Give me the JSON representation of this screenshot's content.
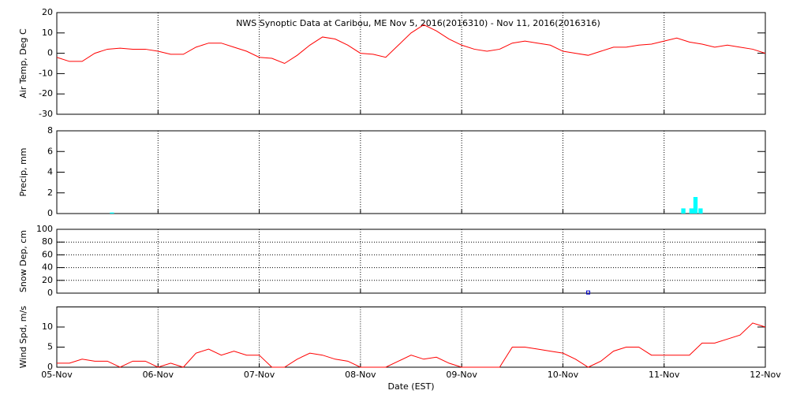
{
  "chart_data": [
    {
      "type": "line",
      "title": "NWS Synoptic Data at Caribou, ME   Nov  5, 2016(2016310) - Nov 11, 2016(2016316)",
      "ylabel": "Air Temp, Deg C",
      "color": "#ff0000",
      "grid": "x",
      "xlim": [
        0,
        7
      ],
      "xticks": [
        0,
        1,
        2,
        3,
        4,
        5,
        6,
        7
      ],
      "ylim": [
        -30,
        20
      ],
      "yticks": [
        -30,
        -20,
        -10,
        0,
        10,
        20
      ],
      "x": [
        0,
        0.125,
        0.25,
        0.375,
        0.5,
        0.625,
        0.75,
        0.875,
        1,
        1.125,
        1.25,
        1.375,
        1.5,
        1.625,
        1.75,
        1.875,
        2,
        2.125,
        2.25,
        2.375,
        2.5,
        2.625,
        2.75,
        2.875,
        3,
        3.125,
        3.25,
        3.375,
        3.5,
        3.625,
        3.75,
        3.875,
        4,
        4.125,
        4.25,
        4.375,
        4.5,
        4.625,
        4.75,
        4.875,
        5,
        5.125,
        5.25,
        5.375,
        5.5,
        5.625,
        5.75,
        5.875,
        6,
        6.125,
        6.25,
        6.375,
        6.5,
        6.625,
        6.75,
        6.875,
        7
      ],
      "values": [
        -2,
        -4,
        -4,
        0,
        2,
        2.5,
        2,
        2,
        1,
        -0.5,
        -0.5,
        3,
        5,
        5,
        3,
        1,
        -2,
        -2.5,
        -5,
        -1,
        4,
        8,
        7,
        4,
        0,
        -0.5,
        -2,
        4,
        10,
        14,
        11,
        7,
        4,
        2,
        1,
        2,
        5,
        6,
        5,
        4,
        1,
        0,
        -1,
        1,
        3,
        3,
        4,
        4.5,
        6,
        7.5,
        5.5,
        4.5,
        3,
        4,
        3,
        2,
        0
      ]
    },
    {
      "type": "bar",
      "ylabel": "Precip, mm",
      "color": "#00ffff",
      "grid": "x",
      "xlim": [
        0,
        7
      ],
      "xticks": [
        0,
        1,
        2,
        3,
        4,
        5,
        6,
        7
      ],
      "ylim": [
        0,
        8
      ],
      "yticks": [
        0,
        2,
        4,
        6,
        8
      ],
      "x": [
        0.545,
        6.19,
        6.27,
        6.31,
        6.36
      ],
      "values": [
        0.1,
        0.5,
        0.5,
        1.6,
        0.5
      ]
    },
    {
      "type": "scatter",
      "ylabel": "Snow Dep, cm",
      "color": "#0000cc",
      "grid": "xy",
      "xlim": [
        0,
        7
      ],
      "xticks": [
        0,
        1,
        2,
        3,
        4,
        5,
        6,
        7
      ],
      "ylim": [
        0,
        100
      ],
      "yticks": [
        0,
        20,
        40,
        60,
        80,
        100
      ],
      "x": [
        5.25
      ],
      "values": [
        1
      ]
    },
    {
      "type": "line",
      "ylabel": "Wind Spd, m/s",
      "xlabel": "Date (EST)",
      "color": "#ff0000",
      "grid": "x",
      "xlim": [
        0,
        7
      ],
      "xticks": [
        {
          "value": 0,
          "label": "05-Nov"
        },
        {
          "value": 1,
          "label": "06-Nov"
        },
        {
          "value": 2,
          "label": "07-Nov"
        },
        {
          "value": 3,
          "label": "08-Nov"
        },
        {
          "value": 4,
          "label": "09-Nov"
        },
        {
          "value": 5,
          "label": "10-Nov"
        },
        {
          "value": 6,
          "label": "11-Nov"
        },
        {
          "value": 7,
          "label": "12-Nov"
        }
      ],
      "ylim": [
        0,
        15
      ],
      "yticks": [
        0,
        5,
        10
      ],
      "x": [
        0,
        0.125,
        0.25,
        0.375,
        0.5,
        0.625,
        0.75,
        0.875,
        1,
        1.125,
        1.25,
        1.375,
        1.5,
        1.625,
        1.75,
        1.875,
        2,
        2.125,
        2.25,
        2.375,
        2.5,
        2.625,
        2.75,
        2.875,
        3,
        3.125,
        3.25,
        3.375,
        3.5,
        3.625,
        3.75,
        3.875,
        4,
        4.125,
        4.25,
        4.375,
        4.5,
        4.625,
        4.75,
        4.875,
        5,
        5.125,
        5.25,
        5.375,
        5.5,
        5.625,
        5.75,
        5.875,
        6,
        6.125,
        6.25,
        6.375,
        6.5,
        6.625,
        6.75,
        6.875,
        7
      ],
      "values": [
        1,
        1,
        2,
        1.5,
        1.5,
        0,
        1.5,
        1.5,
        0,
        1,
        0,
        3.5,
        4.5,
        3,
        4,
        3,
        3,
        0,
        0,
        2,
        3.5,
        3,
        2,
        1.5,
        0,
        0,
        0,
        1.5,
        3,
        2,
        2.5,
        1,
        0,
        0,
        0,
        0,
        5,
        5,
        4.5,
        4,
        3.5,
        2,
        0,
        1.5,
        4,
        5,
        5,
        3,
        3,
        3,
        3,
        6,
        6,
        7,
        8,
        11,
        10
      ]
    }
  ]
}
